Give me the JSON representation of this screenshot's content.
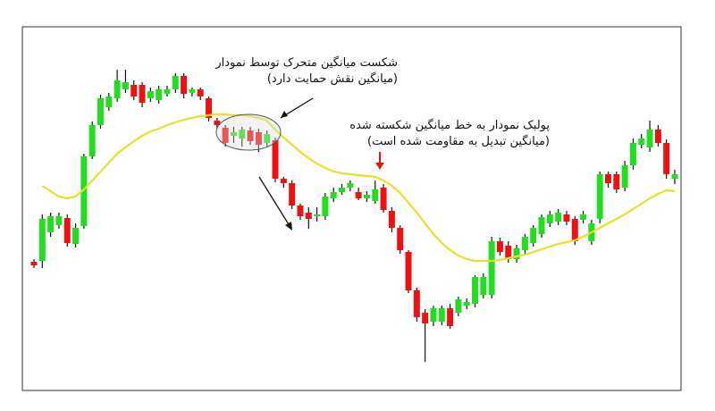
{
  "chart_data": {
    "type": "candlestick",
    "open": [
      167,
      168,
      200,
      208,
      216,
      187,
      207,
      285,
      320,
      340,
      350,
      360,
      365,
      365,
      350,
      348,
      355,
      360,
      375,
      356,
      360,
      350,
      325,
      317,
      308,
      305,
      314,
      312,
      300,
      303,
      260,
      255,
      230,
      222,
      218,
      218,
      238,
      245,
      250,
      245,
      238,
      235,
      250,
      224,
      205,
      178,
      135,
      110,
      100,
      100,
      115,
      110,
      118,
      120,
      130,
      130,
      190,
      185,
      170,
      180,
      188,
      198,
      210,
      212,
      220,
      215,
      214,
      190,
      215,
      265,
      265,
      250,
      275,
      298,
      295,
      315,
      300,
      260
    ],
    "high": [
      170,
      220,
      222,
      222,
      220,
      210,
      288,
      324,
      354,
      356,
      382,
      382,
      370,
      368,
      362,
      364,
      364,
      378,
      378,
      362,
      362,
      352,
      328,
      320,
      318,
      318,
      318,
      316,
      314,
      306,
      262,
      258,
      232,
      228,
      228,
      244,
      250,
      254,
      258,
      250,
      246,
      258,
      254,
      228,
      208,
      180,
      138,
      114,
      118,
      118,
      120,
      128,
      126,
      152,
      154,
      195,
      194,
      190,
      186,
      198,
      208,
      220,
      224,
      226,
      224,
      218,
      224,
      214,
      268,
      268,
      268,
      280,
      305,
      310,
      325,
      320,
      304,
      270
    ],
    "low": [
      160,
      160,
      195,
      204,
      184,
      183,
      204,
      282,
      316,
      336,
      346,
      356,
      348,
      340,
      346,
      344,
      352,
      356,
      350,
      352,
      348,
      324,
      316,
      296,
      300,
      296,
      298,
      290,
      296,
      256,
      250,
      226,
      214,
      204,
      212,
      214,
      234,
      242,
      246,
      236,
      234,
      232,
      222,
      200,
      176,
      132,
      100,
      55,
      95,
      96,
      92,
      106,
      114,
      116,
      126,
      126,
      174,
      166,
      166,
      176,
      184,
      194,
      206,
      208,
      208,
      186,
      210,
      186,
      210,
      250,
      244,
      246,
      270,
      294,
      290,
      296,
      260,
      254
    ],
    "close": [
      163,
      215,
      218,
      218,
      188,
      205,
      285,
      320,
      350,
      352,
      370,
      368,
      352,
      345,
      358,
      360,
      360,
      375,
      355,
      360,
      352,
      328,
      320,
      300,
      312,
      315,
      302,
      298,
      310,
      260,
      255,
      230,
      218,
      215,
      220,
      240,
      245,
      250,
      255,
      238,
      242,
      248,
      225,
      205,
      180,
      135,
      105,
      98,
      115,
      115,
      95,
      125,
      122,
      150,
      150,
      190,
      178,
      170,
      182,
      195,
      205,
      217,
      220,
      222,
      212,
      190,
      220,
      210,
      265,
      255,
      248,
      275,
      300,
      305,
      315,
      300,
      265,
      265
    ],
    "up_color": "#22dd22",
    "down_color": "#ee1111",
    "wick_color": "#111111",
    "ma": {
      "color": "#e8e02a",
      "values": [
        null,
        252,
        246,
        240,
        238,
        240,
        248,
        258,
        268,
        278,
        288,
        295,
        302,
        308,
        313,
        316,
        320,
        323,
        326,
        328,
        330,
        331,
        332,
        332,
        331,
        331,
        330,
        328,
        325,
        315,
        306,
        298,
        290,
        283,
        277,
        272,
        268,
        266,
        265,
        264,
        263,
        262,
        258,
        252,
        244,
        233,
        222,
        210,
        198,
        188,
        180,
        174,
        170,
        168,
        168,
        168,
        169,
        171,
        173,
        175,
        178,
        181,
        184,
        187,
        189,
        191,
        195,
        200,
        205,
        210,
        215,
        220,
        226,
        232,
        238,
        243,
        247,
        246
      ]
    },
    "ylim": [
      23,
      430
    ],
    "annotations": [
      {
        "lines": [
          "شکست میانگین متحرک توسط نمودار",
          "(میانگین نقش حمایت دارد)"
        ]
      },
      {
        "lines": [
          "پولبک نمودار به خط میانگین شکسته شده",
          "(میانگین تبدیل به مقاومت شده است)"
        ]
      }
    ]
  }
}
